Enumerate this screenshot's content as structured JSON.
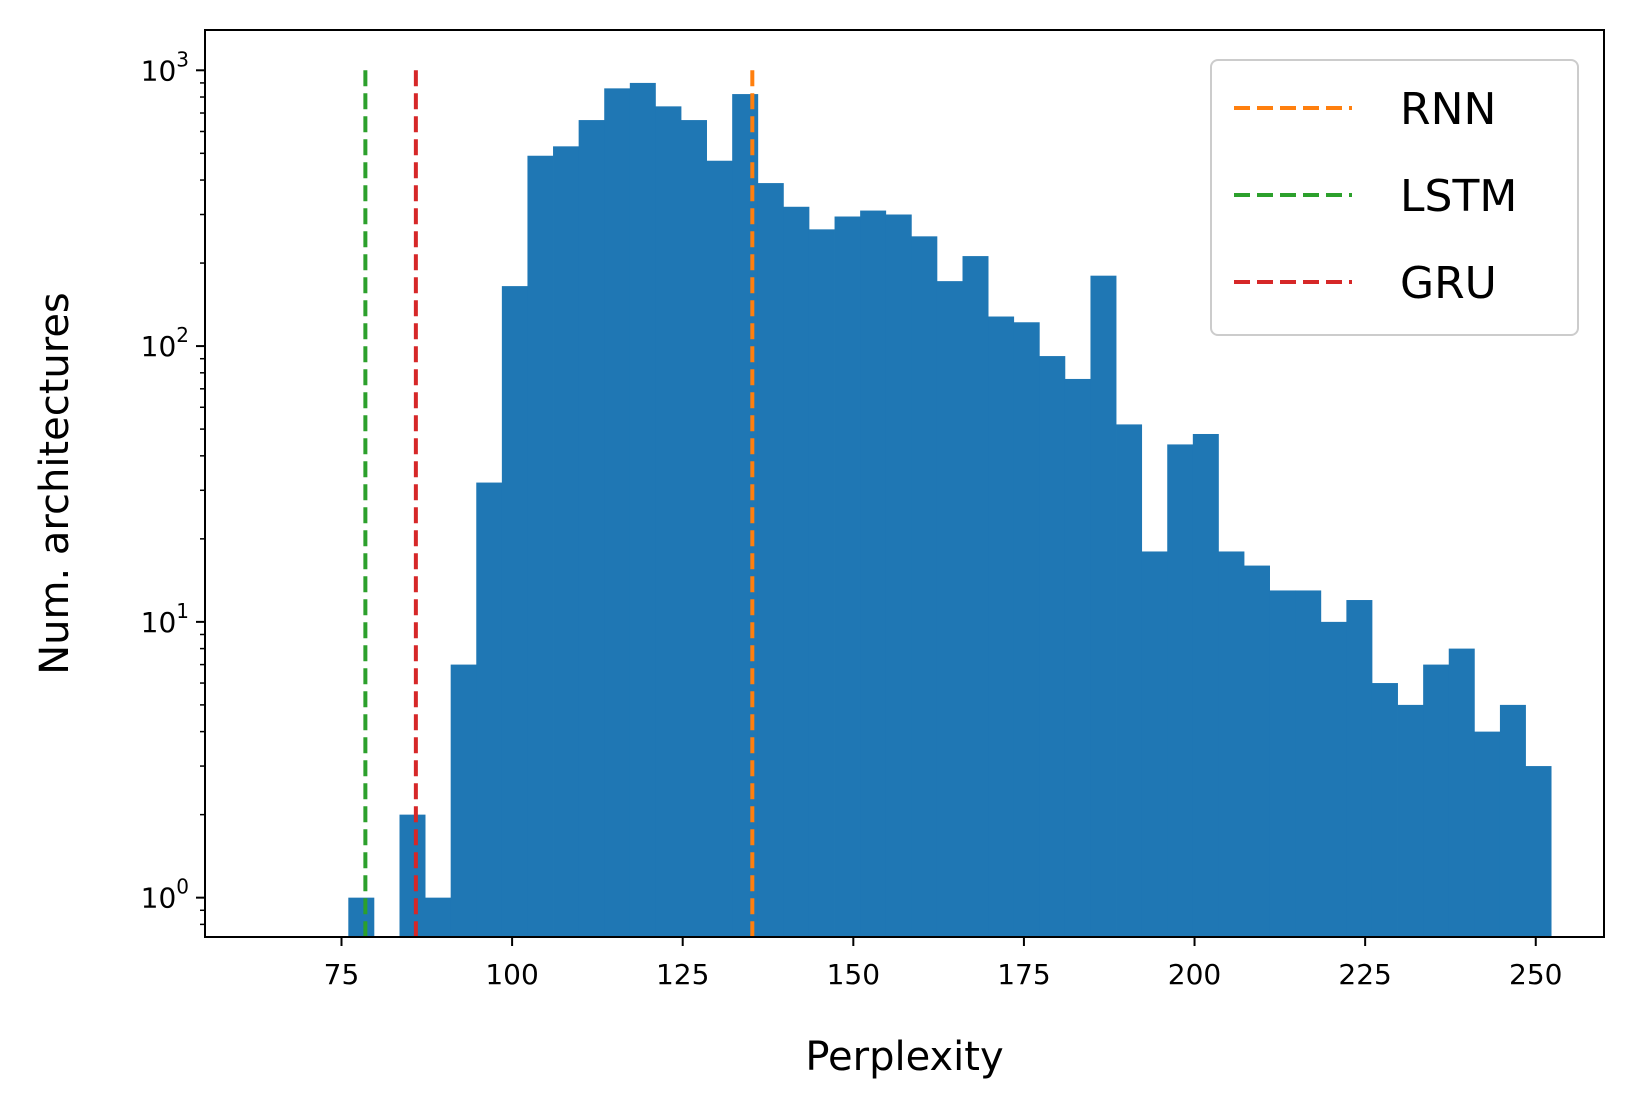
{
  "chart_data": {
    "type": "bar",
    "xlabel": "Perplexity",
    "ylabel": "Num. architectures",
    "xlim": [
      55,
      260
    ],
    "ylim": [
      0.72,
      1400
    ],
    "yscale": "log",
    "xticks": [
      75,
      100,
      125,
      150,
      175,
      200,
      225,
      250
    ],
    "xtick_labels": [
      "75",
      "100",
      "125",
      "150",
      "175",
      "200",
      "225",
      "250"
    ],
    "yticks": [
      1,
      10,
      100,
      1000
    ],
    "ytick_labels": [
      {
        "base": "10",
        "exp": "0"
      },
      {
        "base": "10",
        "exp": "1"
      },
      {
        "base": "10",
        "exp": "2"
      },
      {
        "base": "10",
        "exp": "3"
      }
    ],
    "bar_color": "#1f77b4",
    "bin_edges": [
      76,
      79.75,
      83.5,
      87.25,
      91,
      94.75,
      98.5,
      102.25,
      106,
      109.75,
      113.5,
      117.25,
      121,
      124.75,
      128.5,
      132.25,
      136,
      139.75,
      143.5,
      147.25,
      151,
      154.75,
      158.5,
      162.25,
      166,
      169.75,
      173.5,
      177.25,
      181,
      184.75,
      188.5,
      192.25,
      196,
      199.75,
      203.5,
      207.25,
      211,
      214.75,
      218.5,
      222.25,
      226,
      229.75,
      233.5,
      237.25,
      241,
      244.75,
      248.5,
      252.25
    ],
    "counts": [
      1,
      0,
      2,
      1,
      7,
      32,
      165,
      490,
      530,
      660,
      860,
      900,
      740,
      660,
      470,
      820,
      390,
      320,
      265,
      295,
      310,
      300,
      250,
      172,
      212,
      128,
      122,
      92,
      76,
      180,
      52,
      18,
      44,
      48,
      18,
      16,
      13,
      13,
      10,
      12,
      6,
      5,
      7,
      8,
      4,
      5,
      3
    ],
    "vlines": [
      {
        "name": "RNN",
        "x": 135.2,
        "color": "#ff7f0e"
      },
      {
        "name": "LSTM",
        "x": 78.5,
        "color": "#2ca02c"
      },
      {
        "name": "GRU",
        "x": 85.9,
        "color": "#d62728"
      }
    ],
    "vline_top": 1000,
    "legend": [
      "RNN",
      "LSTM",
      "GRU"
    ],
    "legend_position": "top-right",
    "grid": false
  }
}
